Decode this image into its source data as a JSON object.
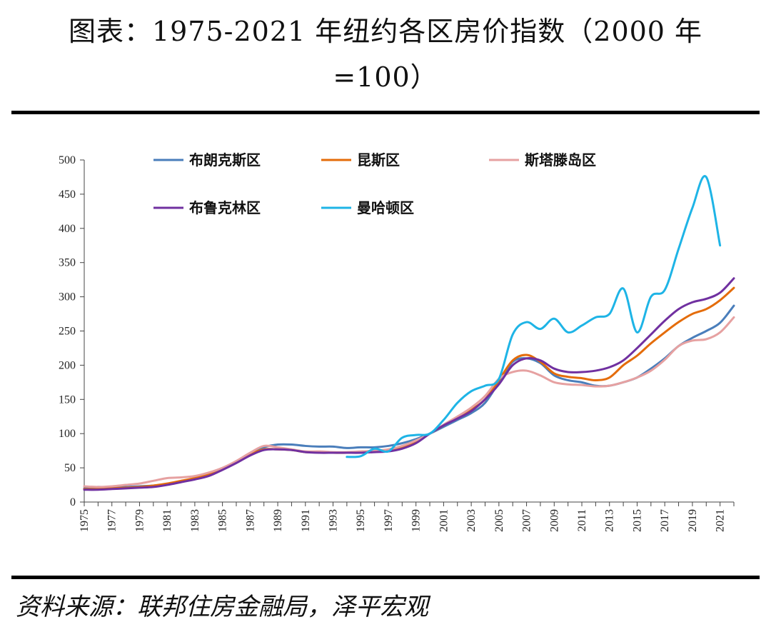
{
  "figure": {
    "title_line1": "图表：1975-2021 年纽约各区房价指数（2000 年",
    "title_line2": "=100）",
    "source": "资料来源：联邦住房金融局，泽平宏观"
  },
  "chart_data": {
    "type": "line",
    "title": "1975-2021 年纽约各区房价指数（2000 年=100）",
    "xlabel": "",
    "ylabel": "",
    "xlim": [
      1975,
      2022
    ],
    "ylim": [
      0,
      500
    ],
    "yticks": [
      0,
      50,
      100,
      150,
      200,
      250,
      300,
      350,
      400,
      450,
      500
    ],
    "xtick_labels": [
      "1975",
      "1977",
      "1979",
      "1981",
      "1983",
      "1985",
      "1987",
      "1989",
      "1991",
      "1993",
      "1995",
      "1997",
      "1999",
      "2001",
      "2003",
      "2005",
      "2007",
      "2009",
      "2011",
      "2013",
      "2015",
      "2017",
      "2019",
      "2021"
    ],
    "legend_position": "top",
    "series": [
      {
        "name": "布朗克斯区",
        "color": "#4a7ebb",
        "x": [
          1975,
          1976,
          1977,
          1978,
          1979,
          1980,
          1981,
          1982,
          1983,
          1984,
          1985,
          1986,
          1987,
          1988,
          1989,
          1990,
          1991,
          1992,
          1993,
          1994,
          1995,
          1996,
          1997,
          1998,
          1999,
          2000,
          2001,
          2002,
          2003,
          2004,
          2005,
          2006,
          2007,
          2008,
          2009,
          2010,
          2011,
          2012,
          2013,
          2014,
          2015,
          2016,
          2017,
          2018,
          2019,
          2020,
          2021,
          2022
        ],
        "values": [
          20,
          22,
          21,
          22,
          23,
          24,
          26,
          30,
          34,
          40,
          48,
          58,
          70,
          80,
          84,
          84,
          82,
          81,
          81,
          79,
          80,
          80,
          82,
          86,
          92,
          100,
          110,
          120,
          130,
          145,
          175,
          205,
          210,
          203,
          185,
          178,
          175,
          170,
          170,
          175,
          182,
          195,
          210,
          228,
          240,
          250,
          262,
          287
        ]
      },
      {
        "name": "昆斯区",
        "color": "#e46c0a",
        "x": [
          1975,
          1976,
          1977,
          1978,
          1979,
          1980,
          1981,
          1982,
          1983,
          1984,
          1985,
          1986,
          1987,
          1988,
          1989,
          1990,
          1991,
          1992,
          1993,
          1994,
          1995,
          1996,
          1997,
          1998,
          1999,
          2000,
          2001,
          2002,
          2003,
          2004,
          2005,
          2006,
          2007,
          2008,
          2009,
          2010,
          2011,
          2012,
          2013,
          2014,
          2015,
          2016,
          2017,
          2018,
          2019,
          2020,
          2021,
          2022
        ],
        "values": [
          19,
          19,
          20,
          21,
          22,
          24,
          27,
          31,
          35,
          41,
          49,
          59,
          70,
          77,
          77,
          76,
          73,
          73,
          72,
          72,
          73,
          74,
          76,
          80,
          88,
          100,
          112,
          124,
          135,
          150,
          178,
          207,
          215,
          205,
          188,
          183,
          181,
          178,
          182,
          200,
          214,
          232,
          248,
          263,
          275,
          282,
          295,
          313
        ]
      },
      {
        "name": "斯塔滕岛区",
        "color": "#e6a1a1",
        "x": [
          1975,
          1976,
          1977,
          1978,
          1979,
          1980,
          1981,
          1982,
          1983,
          1984,
          1985,
          1986,
          1987,
          1988,
          1989,
          1990,
          1991,
          1992,
          1993,
          1994,
          1995,
          1996,
          1997,
          1998,
          1999,
          2000,
          2001,
          2002,
          2003,
          2004,
          2005,
          2006,
          2007,
          2008,
          2009,
          2010,
          2011,
          2012,
          2013,
          2014,
          2015,
          2016,
          2017,
          2018,
          2019,
          2020,
          2021,
          2022
        ],
        "values": [
          23,
          22,
          23,
          25,
          27,
          31,
          35,
          36,
          38,
          43,
          50,
          60,
          72,
          82,
          80,
          77,
          74,
          74,
          73,
          73,
          74,
          75,
          77,
          82,
          90,
          100,
          113,
          125,
          138,
          155,
          180,
          190,
          192,
          185,
          175,
          172,
          171,
          169,
          170,
          175,
          182,
          192,
          208,
          228,
          236,
          238,
          248,
          270
        ]
      },
      {
        "name": "布鲁克林区",
        "color": "#7030a0",
        "x": [
          1975,
          1976,
          1977,
          1978,
          1979,
          1980,
          1981,
          1982,
          1983,
          1984,
          1985,
          1986,
          1987,
          1988,
          1989,
          1990,
          1991,
          1992,
          1993,
          1994,
          1995,
          1996,
          1997,
          1998,
          1999,
          2000,
          2001,
          2002,
          2003,
          2004,
          2005,
          2006,
          2007,
          2008,
          2009,
          2010,
          2011,
          2012,
          2013,
          2014,
          2015,
          2016,
          2017,
          2018,
          2019,
          2020,
          2021,
          2022
        ],
        "values": [
          18,
          18,
          19,
          20,
          21,
          22,
          25,
          29,
          33,
          38,
          47,
          57,
          68,
          76,
          77,
          76,
          73,
          72,
          72,
          72,
          72,
          73,
          74,
          78,
          86,
          100,
          112,
          122,
          133,
          150,
          172,
          200,
          210,
          207,
          195,
          190,
          190,
          192,
          197,
          207,
          225,
          245,
          265,
          282,
          292,
          297,
          306,
          327
        ]
      },
      {
        "name": "曼哈顿区",
        "color": "#1eb4e6",
        "x": [
          1994,
          1995,
          1996,
          1997,
          1998,
          1999,
          2000,
          2001,
          2002,
          2003,
          2004,
          2005,
          2006,
          2007,
          2008,
          2009,
          2010,
          2011,
          2012,
          2013,
          2014,
          2015,
          2016,
          2017,
          2018,
          2019,
          2020,
          2021
        ],
        "values": [
          66,
          67,
          78,
          74,
          94,
          98,
          100,
          120,
          145,
          162,
          170,
          180,
          245,
          263,
          253,
          268,
          248,
          258,
          270,
          275,
          312,
          248,
          300,
          310,
          370,
          430,
          475,
          375
        ]
      }
    ]
  }
}
